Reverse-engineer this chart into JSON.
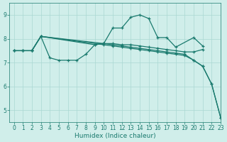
{
  "background_color": "#d0eeea",
  "grid_color": "#aad8d2",
  "line_color": "#1a7a6e",
  "xlabel": "Humidex (Indice chaleur)",
  "xlim": [
    -0.5,
    23
  ],
  "ylim": [
    4.5,
    9.5
  ],
  "yticks": [
    5,
    6,
    7,
    8,
    9
  ],
  "xticks": [
    0,
    1,
    2,
    3,
    4,
    5,
    6,
    7,
    8,
    9,
    10,
    11,
    12,
    13,
    14,
    15,
    16,
    17,
    18,
    19,
    20,
    21,
    22,
    23
  ],
  "s1x": [
    0,
    1,
    2,
    3,
    4,
    5,
    6,
    7,
    8,
    9,
    10,
    11,
    12,
    13,
    14,
    15,
    16,
    17,
    18,
    19,
    20,
    21
  ],
  "s1y": [
    7.5,
    7.5,
    7.5,
    8.1,
    7.2,
    7.1,
    7.1,
    7.1,
    7.35,
    7.75,
    7.8,
    7.8,
    7.75,
    7.75,
    7.7,
    7.65,
    7.6,
    7.55,
    7.5,
    7.45,
    7.45,
    7.55
  ],
  "s2x": [
    2,
    3,
    10,
    11,
    12,
    13,
    14,
    15,
    16,
    17,
    18,
    20,
    21
  ],
  "s2y": [
    7.5,
    8.1,
    7.8,
    8.45,
    8.45,
    8.9,
    9.0,
    8.85,
    8.05,
    8.05,
    7.65,
    8.05,
    7.7
  ],
  "s3x": [
    0,
    1,
    2,
    3,
    9,
    10,
    11,
    12,
    13,
    14,
    15,
    16,
    17,
    18,
    19,
    20,
    21,
    22,
    23
  ],
  "s3y": [
    7.5,
    7.5,
    7.5,
    8.1,
    7.75,
    7.8,
    7.75,
    7.7,
    7.65,
    7.6,
    7.55,
    7.5,
    7.45,
    7.4,
    7.35,
    7.1,
    6.85,
    6.1,
    4.7
  ],
  "s4x": [
    0,
    1,
    2,
    3,
    10,
    11,
    12,
    13,
    14,
    15,
    16,
    17,
    18,
    19,
    20,
    21,
    22,
    23
  ],
  "s4y": [
    7.5,
    7.5,
    7.5,
    8.1,
    7.75,
    7.7,
    7.65,
    7.6,
    7.55,
    7.5,
    7.45,
    7.4,
    7.35,
    7.3,
    7.1,
    6.85,
    6.1,
    4.7
  ]
}
